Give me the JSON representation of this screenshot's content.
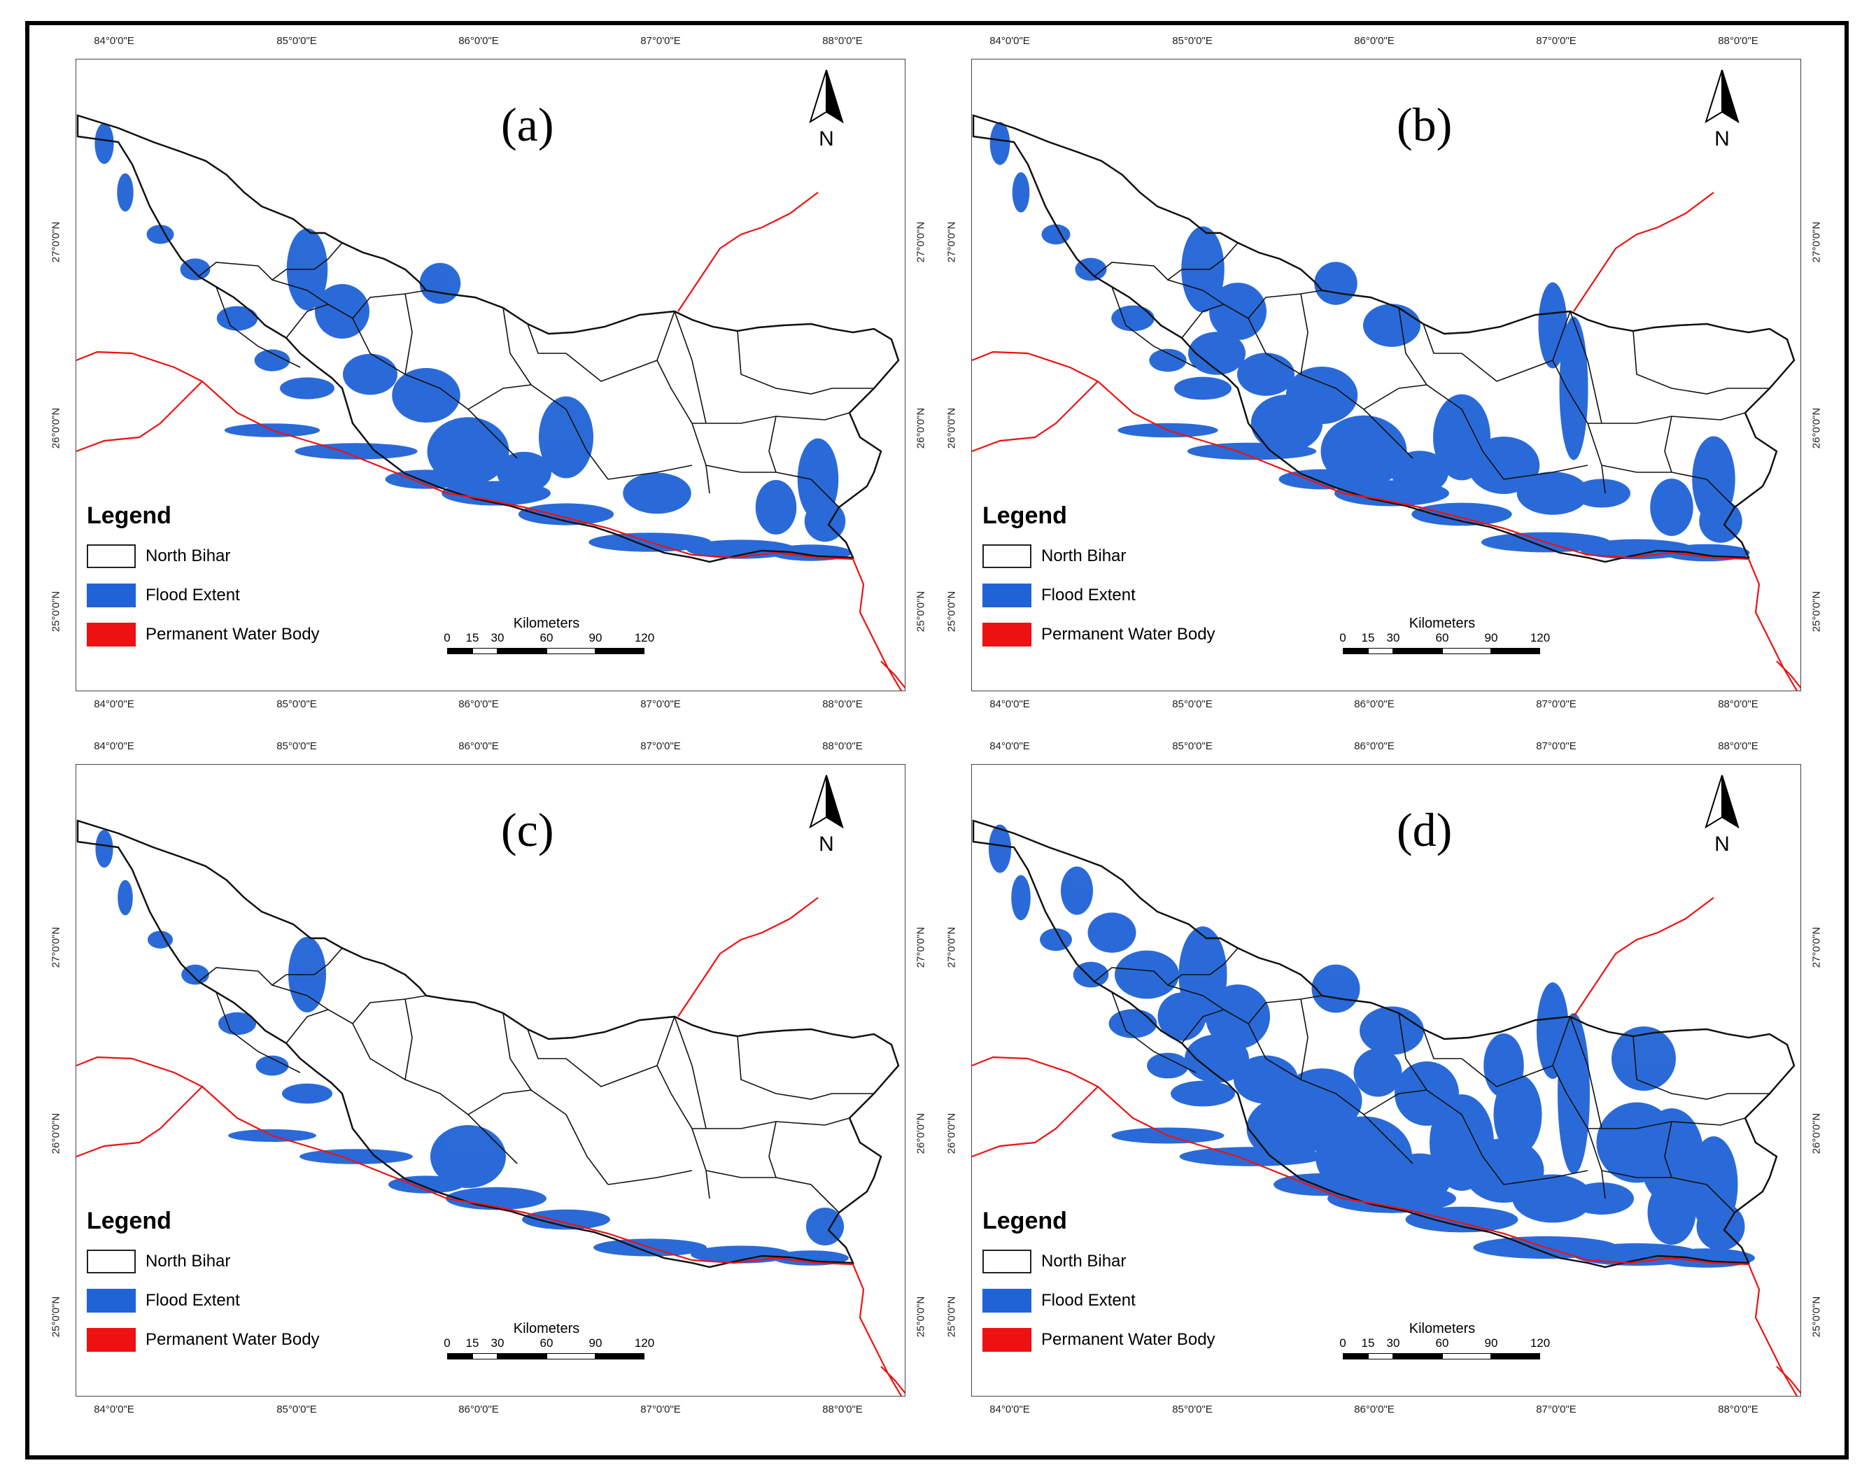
{
  "figure": {
    "legend": {
      "title": "Legend",
      "items": [
        {
          "label": "North Bihar",
          "color": "#ffffff"
        },
        {
          "label": "Flood Extent",
          "color": "#1f63d6"
        },
        {
          "label": "Permanent Water Body",
          "color": "#ee1111"
        }
      ]
    },
    "scale": {
      "title": "Kilometers",
      "ticks": [
        "0",
        "15",
        "30",
        "60",
        "90",
        "120"
      ]
    },
    "north_label": "N",
    "lon_ticks_top_a": [
      "84°0'0\"E",
      "85°0'0\"E",
      "86°0'0\"E",
      "87°0'0\"E",
      "88°0'0\"E"
    ],
    "lon_ticks_other": [
      "84°0'0\"E",
      "85°0'0\"E",
      "86°0'0\"E",
      "87°0'0\"E",
      "88°0'0\"E"
    ],
    "lat_ticks": [
      "27°0'0\"N",
      "26°0'0\"N",
      "25°0'0\"N"
    ],
    "panels": [
      {
        "label": "(a)",
        "flood_level": 0.55
      },
      {
        "label": "(b)",
        "flood_level": 0.65
      },
      {
        "label": "(c)",
        "flood_level": 0.4
      },
      {
        "label": "(d)",
        "flood_level": 0.9
      }
    ],
    "colors": {
      "flood": "#1f63d6",
      "permanent_water": "#ee1111",
      "boundary": "#111111"
    }
  }
}
